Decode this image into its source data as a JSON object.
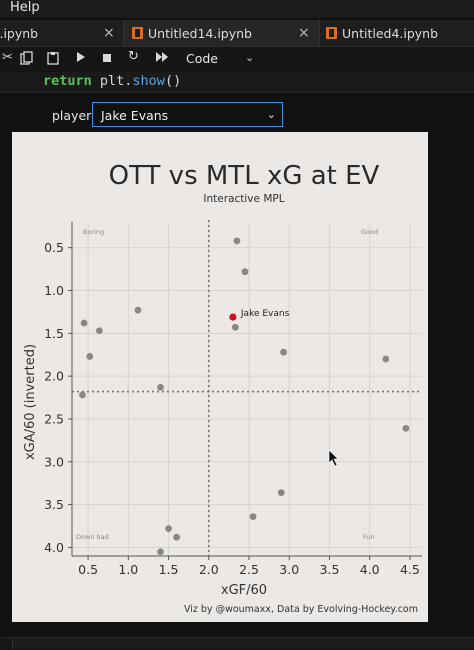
{
  "menubar": {
    "help": "Help"
  },
  "tabs": [
    {
      "label": "l.ipynb",
      "close": "×"
    },
    {
      "label": "Untitled14.ipynb",
      "close": "×"
    },
    {
      "label": "Untitled4.ipynb"
    }
  ],
  "toolbar": {
    "cell_type": "Code",
    "caret": "⌄"
  },
  "code": {
    "keyword": "return",
    "rest_1": " plt.",
    "fn": "show",
    "rest_2": "()"
  },
  "widget": {
    "label": "player",
    "selected": "Jake Evans",
    "caret": "⌄"
  },
  "chart_data": {
    "type": "scatter",
    "title": "OTT vs MTL xG at EV",
    "subtitle": "Interactive MPL",
    "xlabel": "xGF/60",
    "ylabel": "xGA/60 (inverted)",
    "credit": "Viz by @woumaxx, Data by Evolving-Hockey.com",
    "xlim": [
      0.3,
      4.65
    ],
    "ylim": [
      4.1,
      0.2
    ],
    "y_inverted": true,
    "xticks": [
      0.5,
      1.0,
      1.5,
      2.0,
      2.5,
      3.0,
      3.5,
      4.0,
      4.5
    ],
    "xtick_labels": [
      "0.5",
      "1.0",
      "1.5",
      "2.0",
      "2.5",
      "3.0",
      "3.5",
      "4.0",
      "4.5"
    ],
    "yticks": [
      0.5,
      1.0,
      1.5,
      2.0,
      2.5,
      3.0,
      3.5,
      4.0
    ],
    "ytick_labels": [
      "0.5",
      "1.0",
      "1.5",
      "2.0",
      "2.5",
      "3.0",
      "3.5",
      "4.0"
    ],
    "vline_x": 2.0,
    "hline_y": 2.18,
    "grid": true,
    "quadrant_labels": {
      "top_left": "Boring",
      "top_right": "Good",
      "bottom_left": "Down bad",
      "bottom_right": "Fun"
    },
    "point_color": "#888888",
    "highlight_color": "#cc1122",
    "points": [
      {
        "x": 2.35,
        "y": 0.42
      },
      {
        "x": 2.45,
        "y": 0.78
      },
      {
        "x": 1.12,
        "y": 1.23
      },
      {
        "x": 0.45,
        "y": 1.38
      },
      {
        "x": 0.64,
        "y": 1.47
      },
      {
        "x": 2.33,
        "y": 1.43
      },
      {
        "x": 2.93,
        "y": 1.72
      },
      {
        "x": 0.52,
        "y": 1.77
      },
      {
        "x": 4.2,
        "y": 1.8
      },
      {
        "x": 1.4,
        "y": 2.13
      },
      {
        "x": 0.43,
        "y": 2.22
      },
      {
        "x": 4.45,
        "y": 2.61
      },
      {
        "x": 2.9,
        "y": 3.36
      },
      {
        "x": 2.55,
        "y": 3.64
      },
      {
        "x": 1.5,
        "y": 3.78
      },
      {
        "x": 1.6,
        "y": 3.88
      },
      {
        "x": 1.4,
        "y": 4.05
      }
    ],
    "highlight": {
      "x": 2.3,
      "y": 1.31,
      "label": "Jake Evans"
    }
  }
}
